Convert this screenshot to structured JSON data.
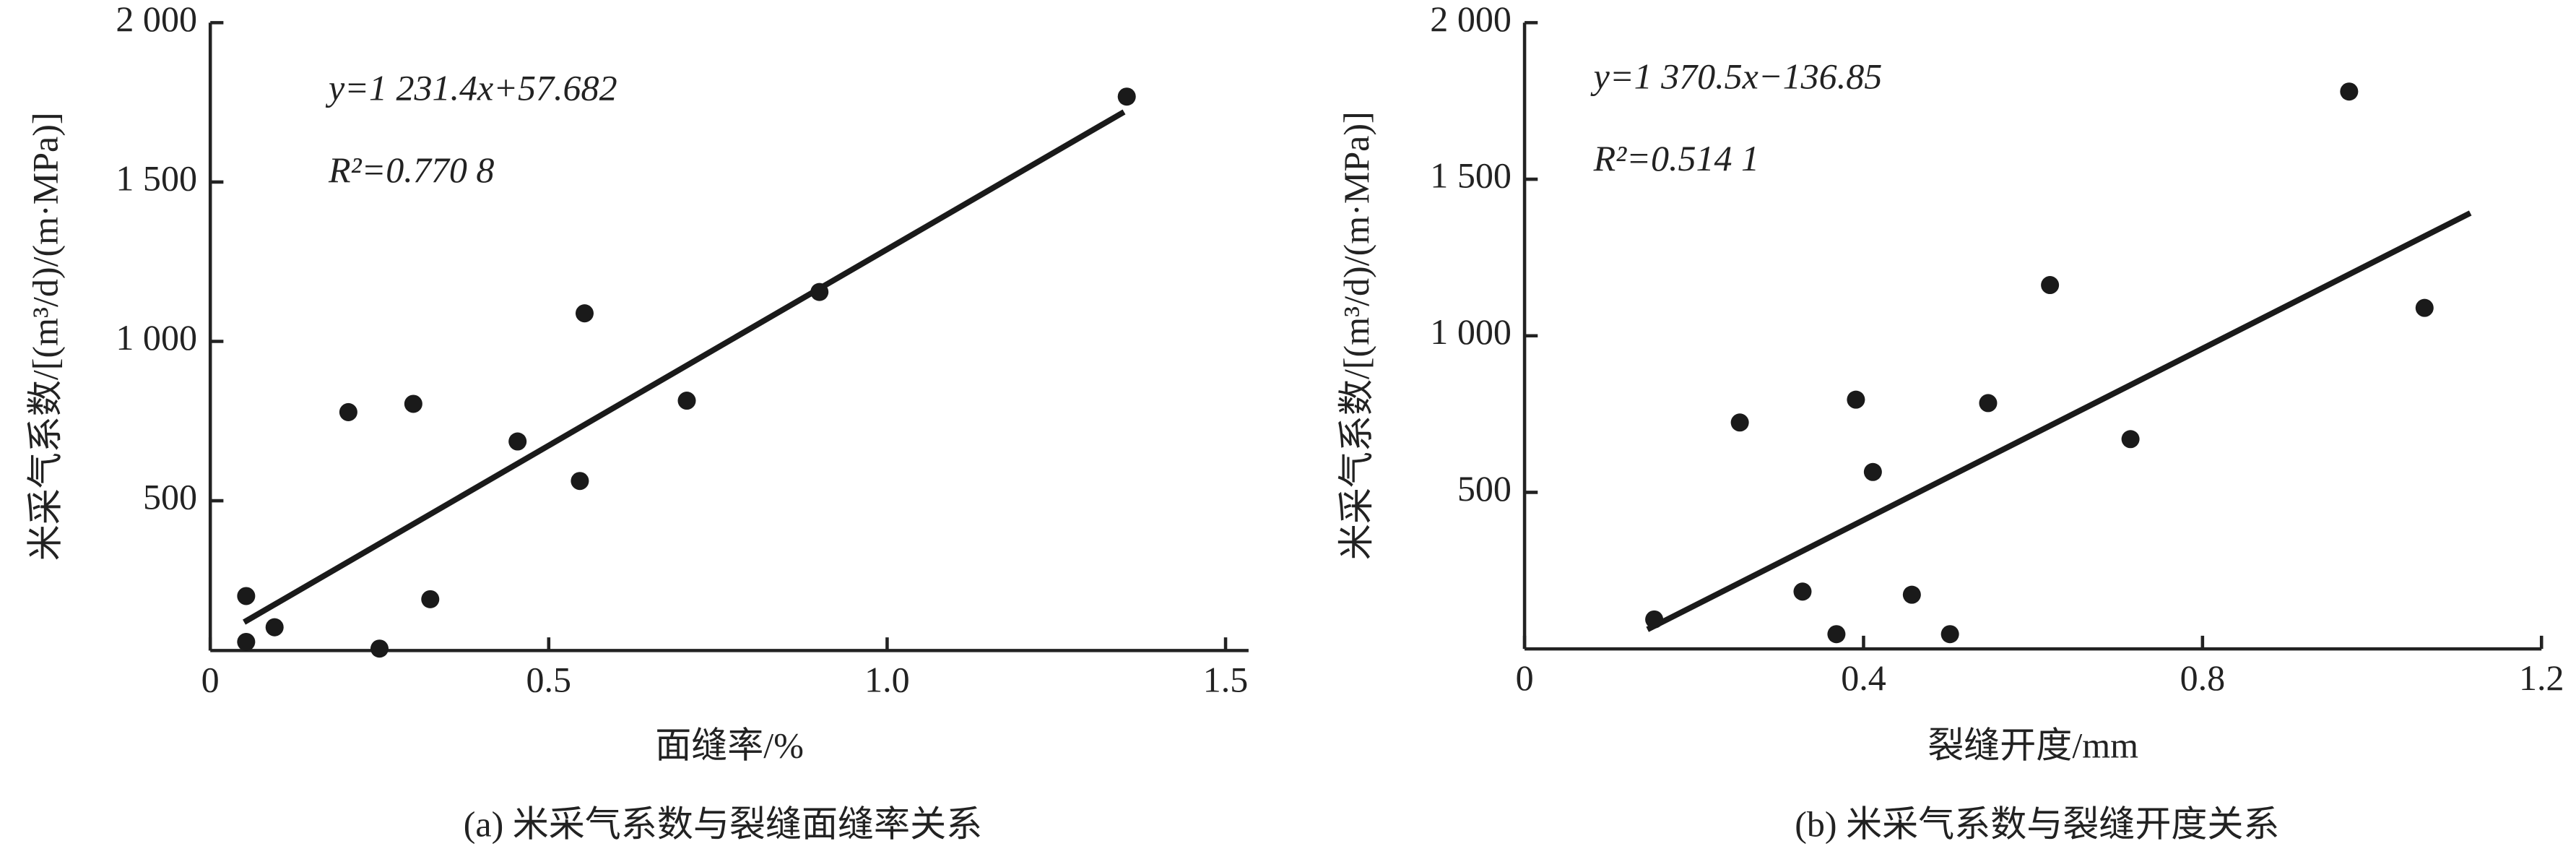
{
  "chart_data": [
    {
      "type": "scatter",
      "caption": "(a) 米采气系数与裂缝面缝率关系",
      "x_label": "面缝率/%",
      "y_label": "米采气系数/[(m³/d)/(m·MPa)]",
      "annotations": [
        "y=1 231.4x+57.682",
        "R²=0.770 8"
      ],
      "xlim": [
        0,
        1.5
      ],
      "ylim": [
        30,
        2000
      ],
      "xticks": [
        0,
        0.5,
        {
          "value": 1.0,
          "label": "1.0"
        },
        1.5
      ],
      "yticks": [
        500,
        {
          "value": 1000,
          "label": "1 000"
        },
        {
          "value": 1500,
          "label": "1 500"
        },
        {
          "value": 2000,
          "label": "2 000"
        }
      ],
      "color": "#1a1a1a",
      "x": [
        0.053,
        0.053,
        0.095,
        0.204,
        0.25,
        0.3,
        0.325,
        0.454,
        0.546,
        0.553,
        0.704,
        0.9,
        1.354
      ],
      "values": [
        201,
        57,
        103,
        778,
        36,
        804,
        191,
        686,
        562,
        1088,
        814,
        1155,
        1768
      ],
      "fit_line": {
        "x": [
          0.05,
          1.35
        ],
        "values": [
          119,
          1720
        ]
      }
    },
    {
      "type": "scatter",
      "caption": "(b) 米采气系数与裂缝开度关系",
      "x_label": "裂缝开度/mm",
      "y_label": "米采气系数/[(m³/d)/(m·MPa)]",
      "annotations": [
        "y=1 370.5x−136.85",
        "R²=0.514 1"
      ],
      "xlim": [
        0,
        1.2
      ],
      "ylim": [
        0,
        2000
      ],
      "xticks": [
        0,
        0.4,
        0.8,
        1.2
      ],
      "yticks": [
        500,
        {
          "value": 1000,
          "label": "1 000"
        },
        {
          "value": 1500,
          "label": "1 500"
        },
        {
          "value": 2000,
          "label": "2 000"
        }
      ],
      "color": "#1a1a1a",
      "x": [
        0.153,
        0.254,
        0.328,
        0.368,
        0.391,
        0.411,
        0.457,
        0.502,
        0.547,
        0.62,
        0.715,
        0.973,
        1.062
      ],
      "values": [
        94,
        723,
        183,
        47,
        796,
        565,
        173,
        47,
        785,
        1162,
        670,
        1780,
        1089
      ],
      "fit_line": {
        "x": [
          0.145,
          1.116
        ],
        "values": [
          62,
          1392
        ]
      }
    }
  ]
}
